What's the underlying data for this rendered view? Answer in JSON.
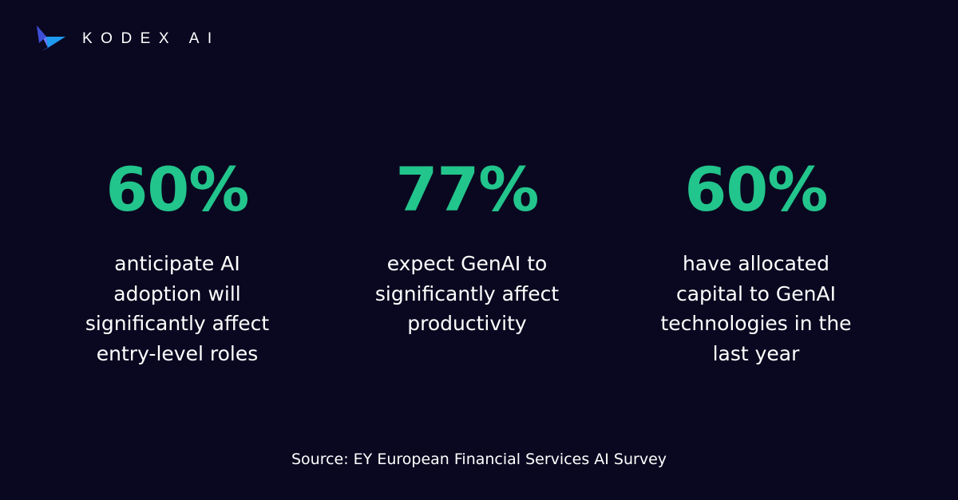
{
  "brand": {
    "name": "KODEX AI",
    "logo_icon": "bird-logo-icon"
  },
  "colors": {
    "background": "#0a0820",
    "accent": "#22c58c",
    "text": "#ffffff"
  },
  "stats": [
    {
      "value": "60%",
      "caption": "anticipate AI adoption will significantly affect entry-level roles"
    },
    {
      "value": "77%",
      "caption": "expect GenAI to significantly affect productivity"
    },
    {
      "value": "60%",
      "caption": "have allocated capital to GenAI technologies in the last year"
    }
  ],
  "source": "Source: EY European Financial Services AI Survey"
}
